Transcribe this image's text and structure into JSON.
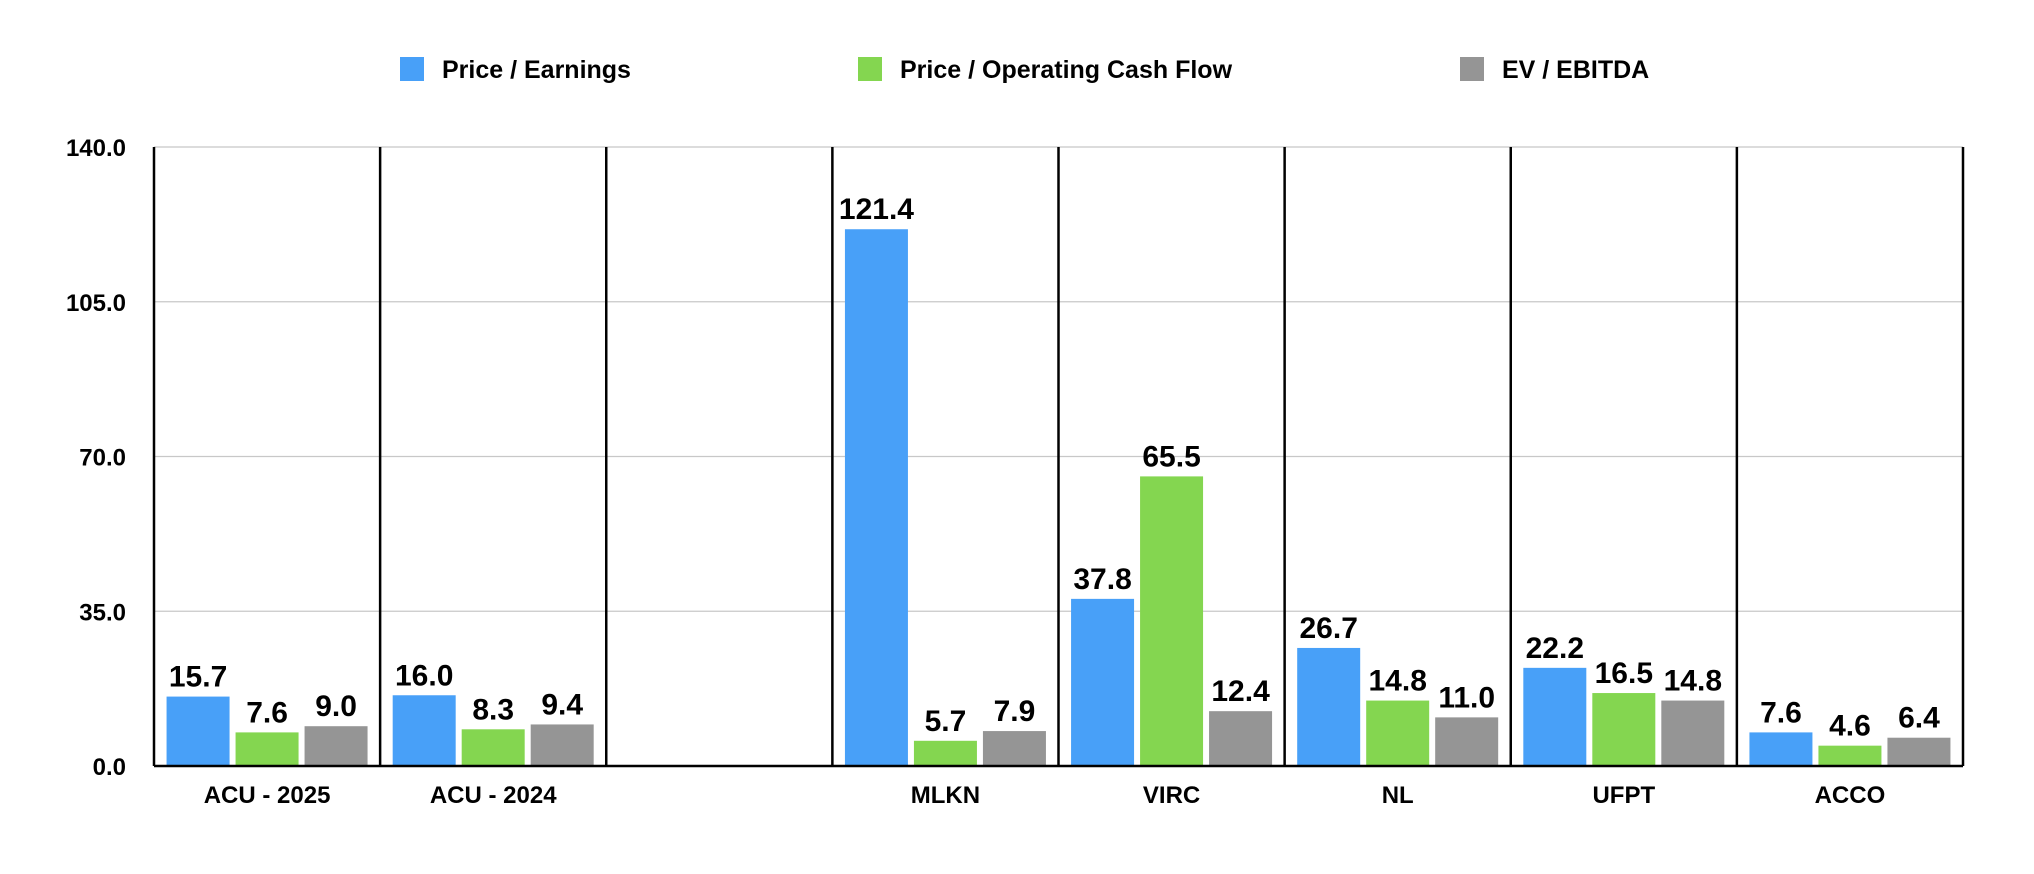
{
  "chart_data": {
    "type": "bar",
    "title": "",
    "xlabel": "",
    "ylabel": "",
    "ylim": [
      0,
      140
    ],
    "yticks": [
      "0.0",
      "35.0",
      "70.0",
      "105.0",
      "140.0"
    ],
    "grid": true,
    "legend_position": "top",
    "categories": [
      "ACU - 2025",
      "ACU - 2024",
      "",
      "MLKN",
      "VIRC",
      "NL",
      "UFPT",
      "ACCO"
    ],
    "series": [
      {
        "name": "Price / Earnings",
        "color": "#48a0f8",
        "values": [
          15.7,
          16.0,
          null,
          121.4,
          37.8,
          26.7,
          22.2,
          7.6
        ],
        "labels": [
          "15.7",
          "16.0",
          "",
          "121.4",
          "37.8",
          "26.7",
          "22.2",
          "7.6"
        ]
      },
      {
        "name": "Price / Operating Cash Flow",
        "color": "#84d650",
        "values": [
          7.6,
          8.3,
          null,
          5.7,
          65.5,
          14.8,
          16.5,
          4.6
        ],
        "labels": [
          "7.6",
          "8.3",
          "",
          "5.7",
          "65.5",
          "14.8",
          "16.5",
          "4.6"
        ]
      },
      {
        "name": "EV / EBITDA",
        "color": "#959595",
        "values": [
          9.0,
          9.4,
          null,
          7.9,
          12.4,
          11.0,
          14.8,
          6.4
        ],
        "labels": [
          "9.0",
          "9.4",
          "",
          "7.9",
          "12.4",
          "11.0",
          "14.8",
          "6.4"
        ]
      }
    ]
  }
}
